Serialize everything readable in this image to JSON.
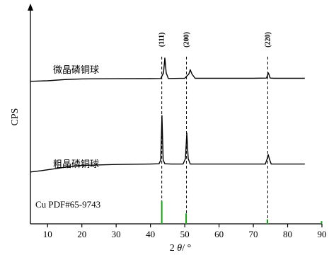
{
  "chart_data": {
    "type": "line",
    "xlabel_prefix": "2 ",
    "xlabel_theta": "θ",
    "xlabel_suffix": "/ °",
    "ylabel": "CPS",
    "xlim": [
      5,
      90
    ],
    "x_ticks": [
      10,
      20,
      30,
      40,
      50,
      60,
      70,
      80,
      90
    ],
    "y_axis_ticks": false,
    "grid": false,
    "reference_lines": [
      {
        "x": 43.3,
        "label": "(111)"
      },
      {
        "x": 50.5,
        "label": "(200)"
      },
      {
        "x": 74.2,
        "label": "(220)"
      }
    ],
    "series": [
      {
        "name": "微晶磷铜球",
        "color": "#000000",
        "x": [
          5,
          10,
          15,
          20,
          30,
          40,
          43,
          43.8,
          44.2,
          44.6,
          45.2,
          46,
          50,
          51.2,
          51.6,
          52.1,
          53,
          60,
          70,
          73.8,
          74.4,
          74.9,
          76,
          80,
          85
        ],
        "y": [
          0.05,
          0.35,
          0.9,
          1.2,
          1.3,
          1.35,
          1.4,
          4,
          11,
          4,
          1.4,
          1.4,
          1.5,
          3.5,
          5.5,
          3.5,
          1.5,
          1.5,
          1.5,
          1.6,
          4,
          1.6,
          1.5,
          1.5,
          1.5
        ]
      },
      {
        "name": "粗晶磷铜球",
        "color": "#000000",
        "x": [
          5,
          8,
          12,
          16,
          20,
          30,
          40,
          42.5,
          43,
          43.35,
          43.7,
          44.2,
          46,
          49.5,
          50.2,
          50.6,
          51,
          51.6,
          53,
          60,
          70,
          73.5,
          74.05,
          74.35,
          74.65,
          75.2,
          77,
          85
        ],
        "y": [
          0.1,
          1,
          2.5,
          4,
          5,
          5.7,
          6,
          6.2,
          9,
          42,
          9,
          6.2,
          6,
          6,
          10,
          29,
          10,
          6,
          6,
          6,
          6,
          6,
          10,
          13,
          10,
          6,
          6,
          6
        ]
      },
      {
        "name": "Cu PDF#65-9743",
        "color": "#1aa31a",
        "type": "stick",
        "x": [
          43.3,
          50.4,
          74.1,
          89.9
        ],
        "y": [
          100,
          46,
          20,
          12
        ]
      }
    ]
  }
}
